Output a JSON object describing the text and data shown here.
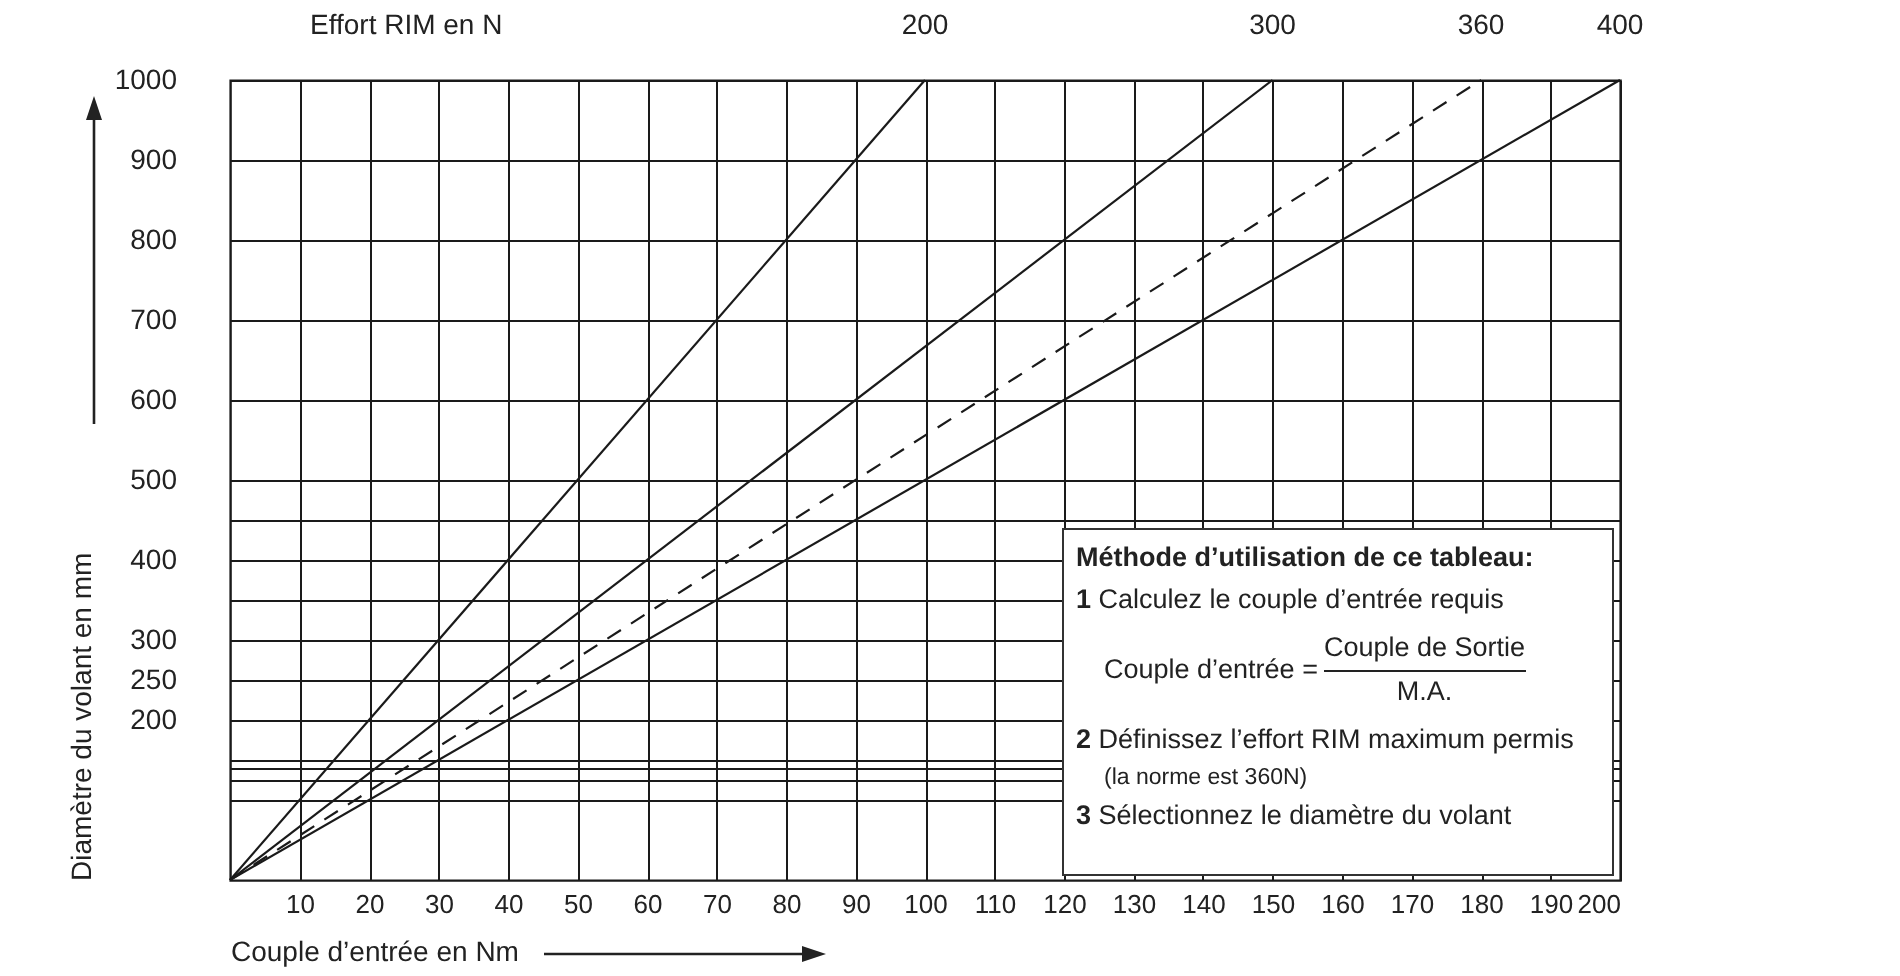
{
  "chart_data": {
    "type": "line",
    "xlabel": "Couple d’entrée en Nm",
    "ylabel": "Diamètre du volant en mm",
    "x2label": "Effort RIM en N",
    "xlim": [
      0,
      200
    ],
    "ylim": [
      0,
      1000
    ],
    "xticks": [
      10,
      20,
      30,
      40,
      50,
      60,
      70,
      80,
      90,
      100,
      110,
      120,
      130,
      140,
      150,
      160,
      170,
      180,
      190,
      200
    ],
    "yticks": [
      {
        "value": 100,
        "label": null
      },
      {
        "value": 125,
        "label": null
      },
      {
        "value": 140,
        "label": null
      },
      {
        "value": 150,
        "label": null
      },
      200,
      250,
      300,
      {
        "value": 350,
        "label": null
      },
      400,
      {
        "value": 450,
        "label": null
      },
      500,
      600,
      700,
      800,
      900,
      1000
    ],
    "grid": true,
    "marker": "none",
    "series": [
      {
        "name": "200",
        "color": "#1a1a1a",
        "x": [
          0,
          100
        ],
        "values": [
          0,
          1000
        ]
      },
      {
        "name": "300",
        "color": "#1a1a1a",
        "x": [
          0,
          150
        ],
        "values": [
          0,
          1000
        ]
      },
      {
        "name": "360",
        "color": "#1a1a1a",
        "x": [
          0,
          180
        ],
        "values": [
          0,
          1000
        ],
        "line_style": "dashed"
      },
      {
        "name": "400",
        "color": "#1a1a1a",
        "x": [
          0,
          200
        ],
        "values": [
          0,
          1000
        ]
      }
    ],
    "annotations": [
      "Méthode d’utilisation de ce tableau:",
      "1 Calculez le couple d’entrée requis",
      "Couple d’entrée =",
      "Couple de Sortie",
      "M.A.",
      "2 Définissez l’effort RIM maximum permis",
      "(la norme est 360N)",
      "3 Sélectionnez le diamètre du volant"
    ]
  }
}
